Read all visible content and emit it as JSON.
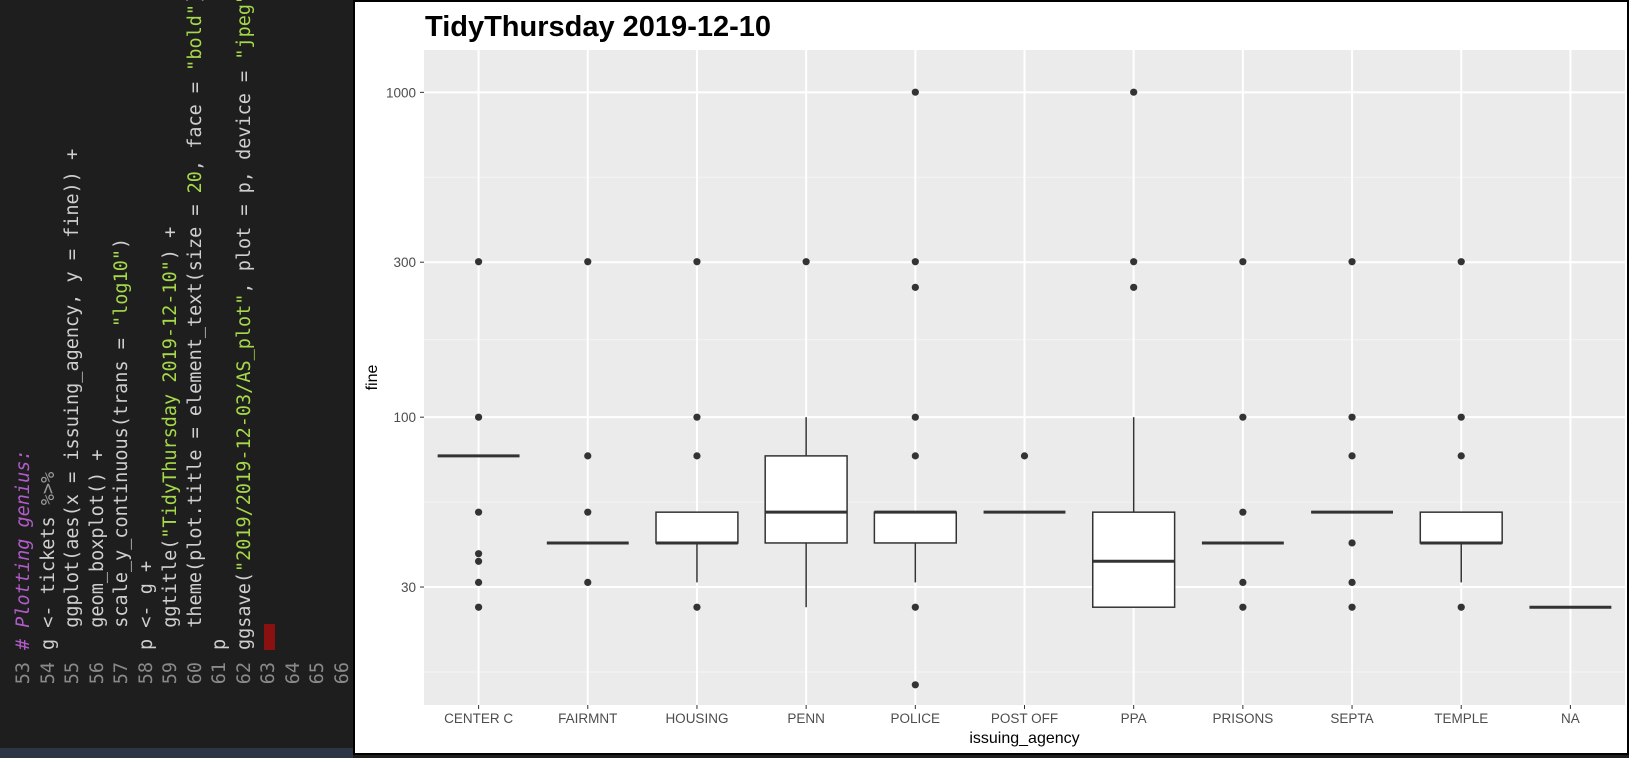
{
  "editor": {
    "lines": [
      {
        "n": "53",
        "segments": [
          {
            "t": "# Plotting genius:",
            "c": "comment"
          }
        ]
      },
      {
        "n": "54",
        "segments": [
          {
            "t": "g <- tickets ",
            "c": "plain"
          },
          {
            "t": "%>%",
            "c": "pipe"
          }
        ]
      },
      {
        "n": "55",
        "segments": [
          {
            "t": "  ggplot(aes(x = issuing_agency, y = fine)) +",
            "c": "plain"
          }
        ]
      },
      {
        "n": "56",
        "segments": [
          {
            "t": "  geom_boxplot() +",
            "c": "plain"
          }
        ]
      },
      {
        "n": "57",
        "segments": [
          {
            "t": "  scale_y_continuous(trans = ",
            "c": "plain"
          },
          {
            "t": "\"log10\"",
            "c": "str"
          },
          {
            "t": ")",
            "c": "plain"
          }
        ]
      },
      {
        "n": "58",
        "segments": [
          {
            "t": "p <- g +",
            "c": "plain"
          }
        ]
      },
      {
        "n": "59",
        "segments": [
          {
            "t": "  ggtitle(",
            "c": "plain"
          },
          {
            "t": "\"TidyThursday 2019-12-10\"",
            "c": "str"
          },
          {
            "t": ") +",
            "c": "plain"
          }
        ]
      },
      {
        "n": "60",
        "segments": [
          {
            "t": "  theme(plot.title = element_text(size = ",
            "c": "plain"
          },
          {
            "t": "20",
            "c": "num"
          },
          {
            "t": ", face = ",
            "c": "plain"
          },
          {
            "t": "\"bold\"",
            "c": "str"
          },
          {
            "t": "))",
            "c": "plain"
          }
        ]
      },
      {
        "n": "61",
        "segments": [
          {
            "t": "p",
            "c": "plain"
          }
        ]
      },
      {
        "n": "62",
        "segments": [
          {
            "t": "ggsave(",
            "c": "plain"
          },
          {
            "t": "\"2019/2019-12-03/AS_plot\"",
            "c": "str"
          },
          {
            "t": ", plot = p, device = ",
            "c": "plain"
          },
          {
            "t": "\"jpeg\"",
            "c": "str"
          },
          {
            "t": ")",
            "c": "plain"
          }
        ]
      },
      {
        "n": "63",
        "segments": [],
        "cursor": true
      },
      {
        "n": "64",
        "segments": []
      },
      {
        "n": "65",
        "segments": []
      },
      {
        "n": "66",
        "segments": []
      }
    ]
  },
  "chart_data": {
    "type": "box",
    "title": "TidyThursday 2019-12-10",
    "xlabel": "issuing_agency",
    "ylabel": "fine",
    "y_scale": "log10",
    "yticks": [
      30,
      100,
      300,
      1000
    ],
    "ylim": [
      13,
      1350
    ],
    "grid": true,
    "colors": {
      "panel": "#ebebeb",
      "grid_major": "#ffffff",
      "grid_minor": "#f4f4f4",
      "box_line": "#333333",
      "box_fill": "#ffffff",
      "point": "#333333"
    },
    "categories": [
      "CENTER C",
      "FAIRMNT",
      "HOUSING",
      "PENN",
      "POLICE",
      "POST OFF",
      "PPA",
      "PRISONS",
      "SEPTA",
      "TEMPLE",
      "NA"
    ],
    "boxes": [
      {
        "name": "CENTER C",
        "q1": 76,
        "median": 76,
        "q3": 76,
        "lower": 76,
        "upper": 76,
        "outliers": [
          26,
          31,
          36,
          38,
          51,
          100,
          301
        ]
      },
      {
        "name": "FAIRMNT",
        "q1": 41,
        "median": 41,
        "q3": 41,
        "lower": 41,
        "upper": 41,
        "outliers": [
          31,
          51,
          76,
          301
        ]
      },
      {
        "name": "HOUSING",
        "q1": 41,
        "median": 41,
        "q3": 51,
        "lower": 31,
        "upper": 51,
        "outliers": [
          26,
          76,
          100,
          301
        ]
      },
      {
        "name": "PENN",
        "q1": 41,
        "median": 51,
        "q3": 76,
        "lower": 26,
        "upper": 100,
        "outliers": [
          301
        ]
      },
      {
        "name": "POLICE",
        "q1": 41,
        "median": 51,
        "q3": 51,
        "lower": 31,
        "upper": 51,
        "outliers": [
          15,
          26,
          76,
          100,
          251,
          301,
          1001
        ]
      },
      {
        "name": "POST OFF",
        "q1": 51,
        "median": 51,
        "q3": 51,
        "lower": 51,
        "upper": 51,
        "outliers": [
          76
        ]
      },
      {
        "name": "PPA",
        "q1": 26,
        "median": 36,
        "q3": 51,
        "lower": 26,
        "upper": 100,
        "outliers": [
          251,
          301,
          1001
        ]
      },
      {
        "name": "PRISONS",
        "q1": 41,
        "median": 41,
        "q3": 41,
        "lower": 41,
        "upper": 41,
        "outliers": [
          26,
          31,
          51,
          100,
          301
        ]
      },
      {
        "name": "SEPTA",
        "q1": 51,
        "median": 51,
        "q3": 51,
        "lower": 51,
        "upper": 51,
        "outliers": [
          26,
          31,
          41,
          76,
          100,
          301
        ]
      },
      {
        "name": "TEMPLE",
        "q1": 41,
        "median": 41,
        "q3": 51,
        "lower": 31,
        "upper": 51,
        "outliers": [
          26,
          76,
          100,
          301
        ]
      },
      {
        "name": "NA",
        "q1": 26,
        "median": 26,
        "q3": 26,
        "lower": 26,
        "upper": 26,
        "outliers": []
      }
    ]
  }
}
